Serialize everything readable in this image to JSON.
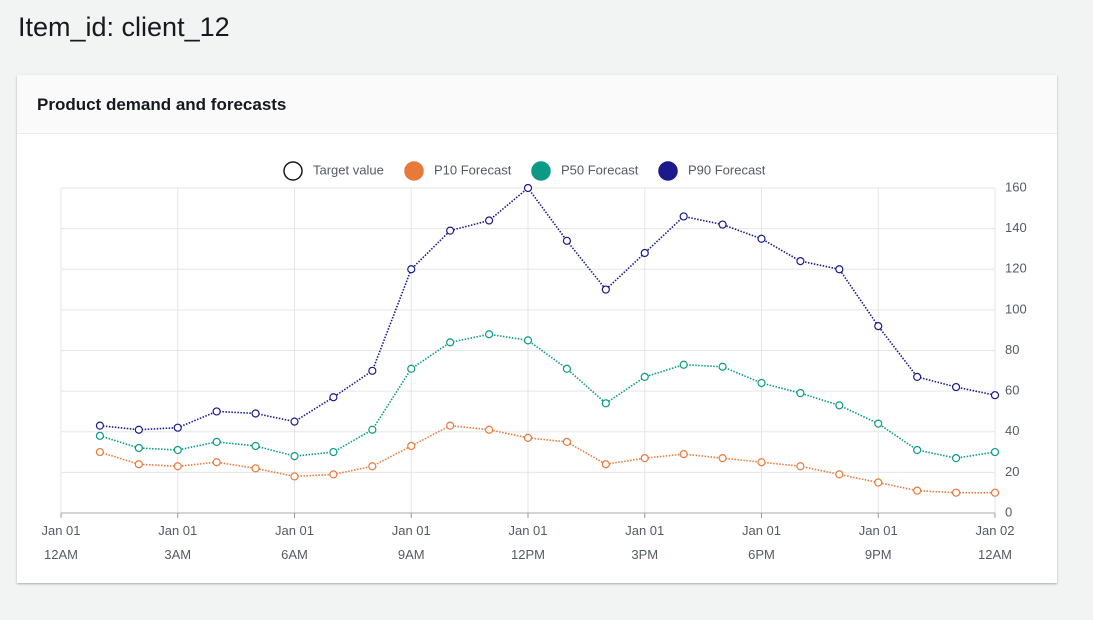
{
  "page": {
    "title": "Item_id: client_12"
  },
  "chart_data": {
    "type": "line",
    "title": "Product demand and forecasts",
    "x": [
      1,
      2,
      3,
      4,
      5,
      6,
      7,
      8,
      9,
      10,
      11,
      12,
      13,
      14,
      15,
      16,
      17,
      18,
      19,
      20,
      21,
      22,
      23,
      24
    ],
    "xlim": [
      0,
      24
    ],
    "xticks": [
      {
        "value": 0,
        "label": "Jan 01\n12AM"
      },
      {
        "value": 3,
        "label": "Jan 01\n3AM"
      },
      {
        "value": 6,
        "label": "Jan 01\n6AM"
      },
      {
        "value": 9,
        "label": "Jan 01\n9AM"
      },
      {
        "value": 12,
        "label": "Jan 01\n12PM"
      },
      {
        "value": 15,
        "label": "Jan 01\n3PM"
      },
      {
        "value": 18,
        "label": "Jan 01\n6PM"
      },
      {
        "value": 21,
        "label": "Jan 01\n9PM"
      },
      {
        "value": 24,
        "label": "Jan 02\n12AM"
      }
    ],
    "ylim": [
      0,
      160
    ],
    "yticks": [
      0,
      20,
      40,
      60,
      80,
      100,
      120,
      140,
      160
    ],
    "grid": true,
    "legend": "top",
    "series": [
      {
        "name": "Target value",
        "color": "#ffffff",
        "values": [
          null,
          null,
          null,
          null,
          null,
          null,
          null,
          null,
          null,
          null,
          null,
          null,
          null,
          null,
          null,
          null,
          null,
          null,
          null,
          null,
          null,
          null,
          null,
          null
        ]
      },
      {
        "name": "P10 Forecast",
        "color": "#e8793a",
        "values": [
          30,
          24,
          23,
          25,
          22,
          18,
          19,
          23,
          33,
          43,
          41,
          37,
          35,
          24,
          27,
          29,
          27,
          25,
          23,
          19,
          15,
          11,
          10,
          10
        ]
      },
      {
        "name": "P50 Forecast",
        "color": "#0a9a85",
        "values": [
          38,
          32,
          31,
          35,
          33,
          28,
          30,
          41,
          71,
          84,
          88,
          85,
          71,
          54,
          67,
          73,
          72,
          64,
          59,
          53,
          44,
          31,
          27,
          30
        ]
      },
      {
        "name": "P90 Forecast",
        "color": "#1a1a8c",
        "values": [
          43,
          41,
          42,
          50,
          49,
          45,
          57,
          70,
          120,
          139,
          144,
          160,
          134,
          110,
          128,
          146,
          142,
          135,
          124,
          120,
          92,
          67,
          62,
          58
        ]
      }
    ]
  }
}
